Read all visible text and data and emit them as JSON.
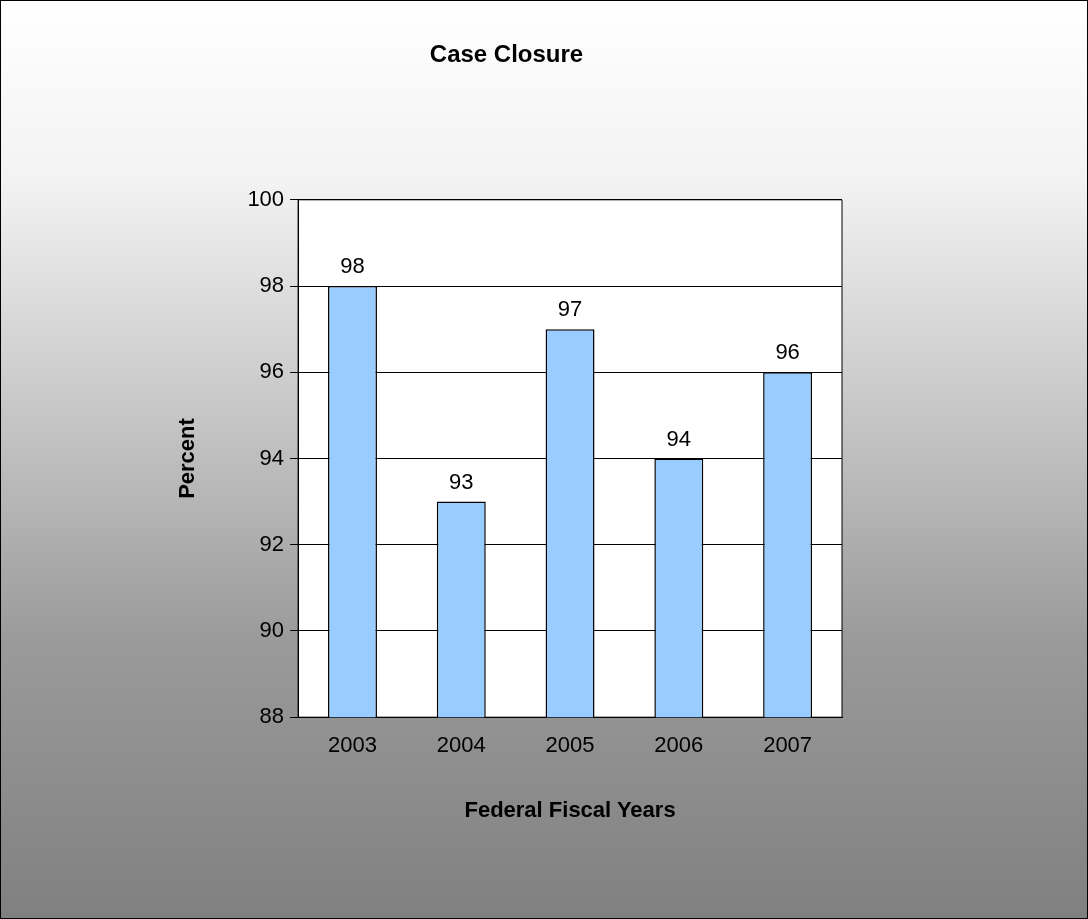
{
  "chart_data": {
    "type": "bar",
    "title": "Case Closure",
    "xlabel": "Federal Fiscal Years",
    "ylabel": "Percent",
    "categories": [
      "2003",
      "2004",
      "2005",
      "2006",
      "2007"
    ],
    "values": [
      98,
      93,
      97,
      94,
      96
    ],
    "color": "#99ccff",
    "ylim": [
      88,
      100
    ],
    "yticks": [
      88,
      90,
      92,
      94,
      96,
      98,
      100
    ],
    "grid": "y",
    "data_labels": true
  }
}
